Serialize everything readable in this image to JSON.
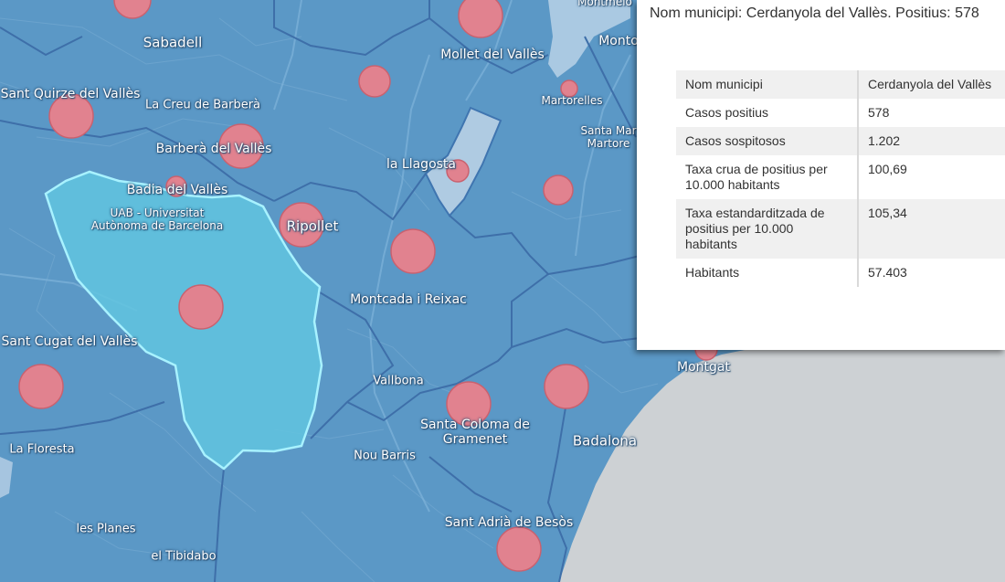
{
  "map": {
    "labels": [
      {
        "id": "sabadell",
        "text": "Sabadell"
      },
      {
        "id": "sant-quirze",
        "text": "Sant Quirze del Vallès"
      },
      {
        "id": "la-creu",
        "text": "La Creu de Barberà"
      },
      {
        "id": "barbera",
        "text": "Barberà del Vallès"
      },
      {
        "id": "badia",
        "text": "Badia del Vallès"
      },
      {
        "id": "uab",
        "text": "UAB - Universitat\nAutònoma de Barcelona"
      },
      {
        "id": "ripollet",
        "text": "Ripollet"
      },
      {
        "id": "mollet",
        "text": "Mollet del Vallès"
      },
      {
        "id": "montmelo",
        "text": "Montmelo"
      },
      {
        "id": "montornes",
        "text": "Monto"
      },
      {
        "id": "martorelles",
        "text": "Martorelles"
      },
      {
        "id": "santa-maria",
        "text": "Santa Mar\nMartore"
      },
      {
        "id": "la-llagosta",
        "text": "la Llagosta"
      },
      {
        "id": "montcada",
        "text": "Montcada i Reixac"
      },
      {
        "id": "sant-cugat",
        "text": "Sant Cugat del Vallès"
      },
      {
        "id": "vallbona",
        "text": "Vallbona"
      },
      {
        "id": "santa-coloma",
        "text": "Santa Coloma de\nGramenet"
      },
      {
        "id": "badalona",
        "text": "Badalona"
      },
      {
        "id": "montgat",
        "text": "Montgat"
      },
      {
        "id": "la-floresta",
        "text": "La Floresta"
      },
      {
        "id": "nou-barris",
        "text": "Nou Barris"
      },
      {
        "id": "les-planes",
        "text": "les Planes"
      },
      {
        "id": "el-tibidabo",
        "text": "el Tibidabo"
      },
      {
        "id": "sant-adria",
        "text": "Sant Adrià de Besòs"
      }
    ],
    "colors": {
      "land": "#5b98c6",
      "sea": "#cdd1d4",
      "selected_fill": "#62c4df",
      "selected_outline": "#a8f2ff",
      "circle_fill": "#e1828f",
      "circle_stroke": "#c9616f"
    }
  },
  "popup": {
    "title": "Nom municipi: Cerdanyola del Vallès. Positius: 578",
    "rows": [
      {
        "key": "Nom municipi",
        "value": "Cerdanyola del Vallès"
      },
      {
        "key": "Casos positius",
        "value": "578"
      },
      {
        "key": "Casos sospitosos",
        "value": "1.202"
      },
      {
        "key": "Taxa crua de positius per 10.000 habitants",
        "value": "100,69"
      },
      {
        "key": "Taxa estandarditzada de positius per 10.000 habitants",
        "value": "105,34"
      },
      {
        "key": "Habitants",
        "value": "57.403"
      }
    ]
  }
}
